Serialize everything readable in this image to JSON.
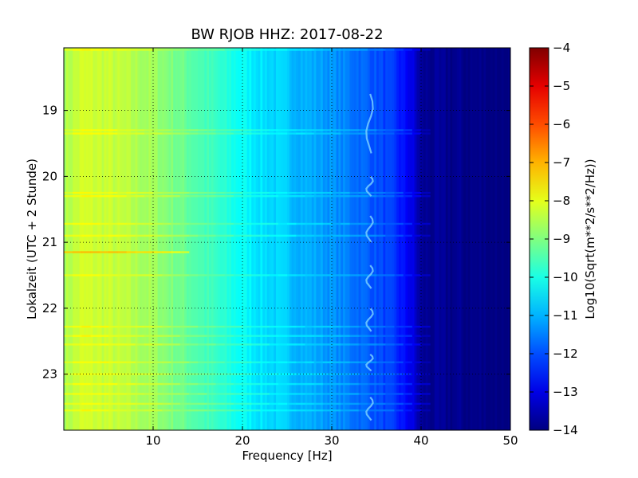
{
  "chart_data": {
    "type": "heatmap",
    "title": "BW RJOB HHZ: 2017-08-22",
    "xlabel": "Frequency [Hz]",
    "ylabel": "Lokalzeit (UTC + 2 Stunde)",
    "xlim": [
      0,
      50
    ],
    "ylim": [
      18.05,
      23.85
    ],
    "y_inverted": true,
    "x_ticks": [
      10,
      20,
      30,
      40,
      50
    ],
    "x_tick_labels": [
      "10",
      "20",
      "30",
      "40",
      "50"
    ],
    "y_ticks": [
      19,
      20,
      21,
      22,
      23
    ],
    "y_tick_labels": [
      "19",
      "20",
      "21",
      "22",
      "23"
    ],
    "grid": true,
    "colormap": "jet",
    "colorbar": {
      "label": "Log10(Sqrt(m**2/s**2/Hz))",
      "range": [
        -14,
        -4
      ],
      "ticks": [
        -4,
        -5,
        -6,
        -7,
        -8,
        -9,
        -10,
        -11,
        -12,
        -13,
        -14
      ],
      "tick_labels": [
        "−4",
        "−5",
        "−6",
        "−7",
        "−8",
        "−9",
        "−10",
        "−11",
        "−12",
        "−13",
        "−14"
      ]
    },
    "spectrum_profile": {
      "frequency_hz": [
        0,
        2,
        5,
        10,
        14,
        18,
        22,
        26,
        30,
        34,
        37,
        39,
        40,
        50
      ],
      "log10_amplitude": [
        -8.6,
        -8.2,
        -8.3,
        -8.7,
        -9.3,
        -9.9,
        -10.5,
        -10.9,
        -11.3,
        -11.8,
        -12.3,
        -13.0,
        -13.8,
        -14.0
      ]
    },
    "features": {
      "wandering_line_hz": 34.3,
      "wandering_segments_hours": [
        [
          18.75,
          19.65
        ],
        [
          20.0,
          20.3
        ],
        [
          20.6,
          21.0
        ],
        [
          21.35,
          21.7
        ],
        [
          22.0,
          22.35
        ],
        [
          22.7,
          22.95
        ],
        [
          23.35,
          23.7
        ]
      ],
      "horizontal_bands_hours": [
        18.08,
        19.3,
        19.35,
        20.25,
        20.3,
        20.72,
        20.9,
        21.15,
        21.5,
        22.28,
        22.42,
        22.55,
        22.82,
        23.0,
        23.15,
        23.3,
        23.45,
        23.55
      ],
      "strongest_band_hour": 21.15
    }
  }
}
